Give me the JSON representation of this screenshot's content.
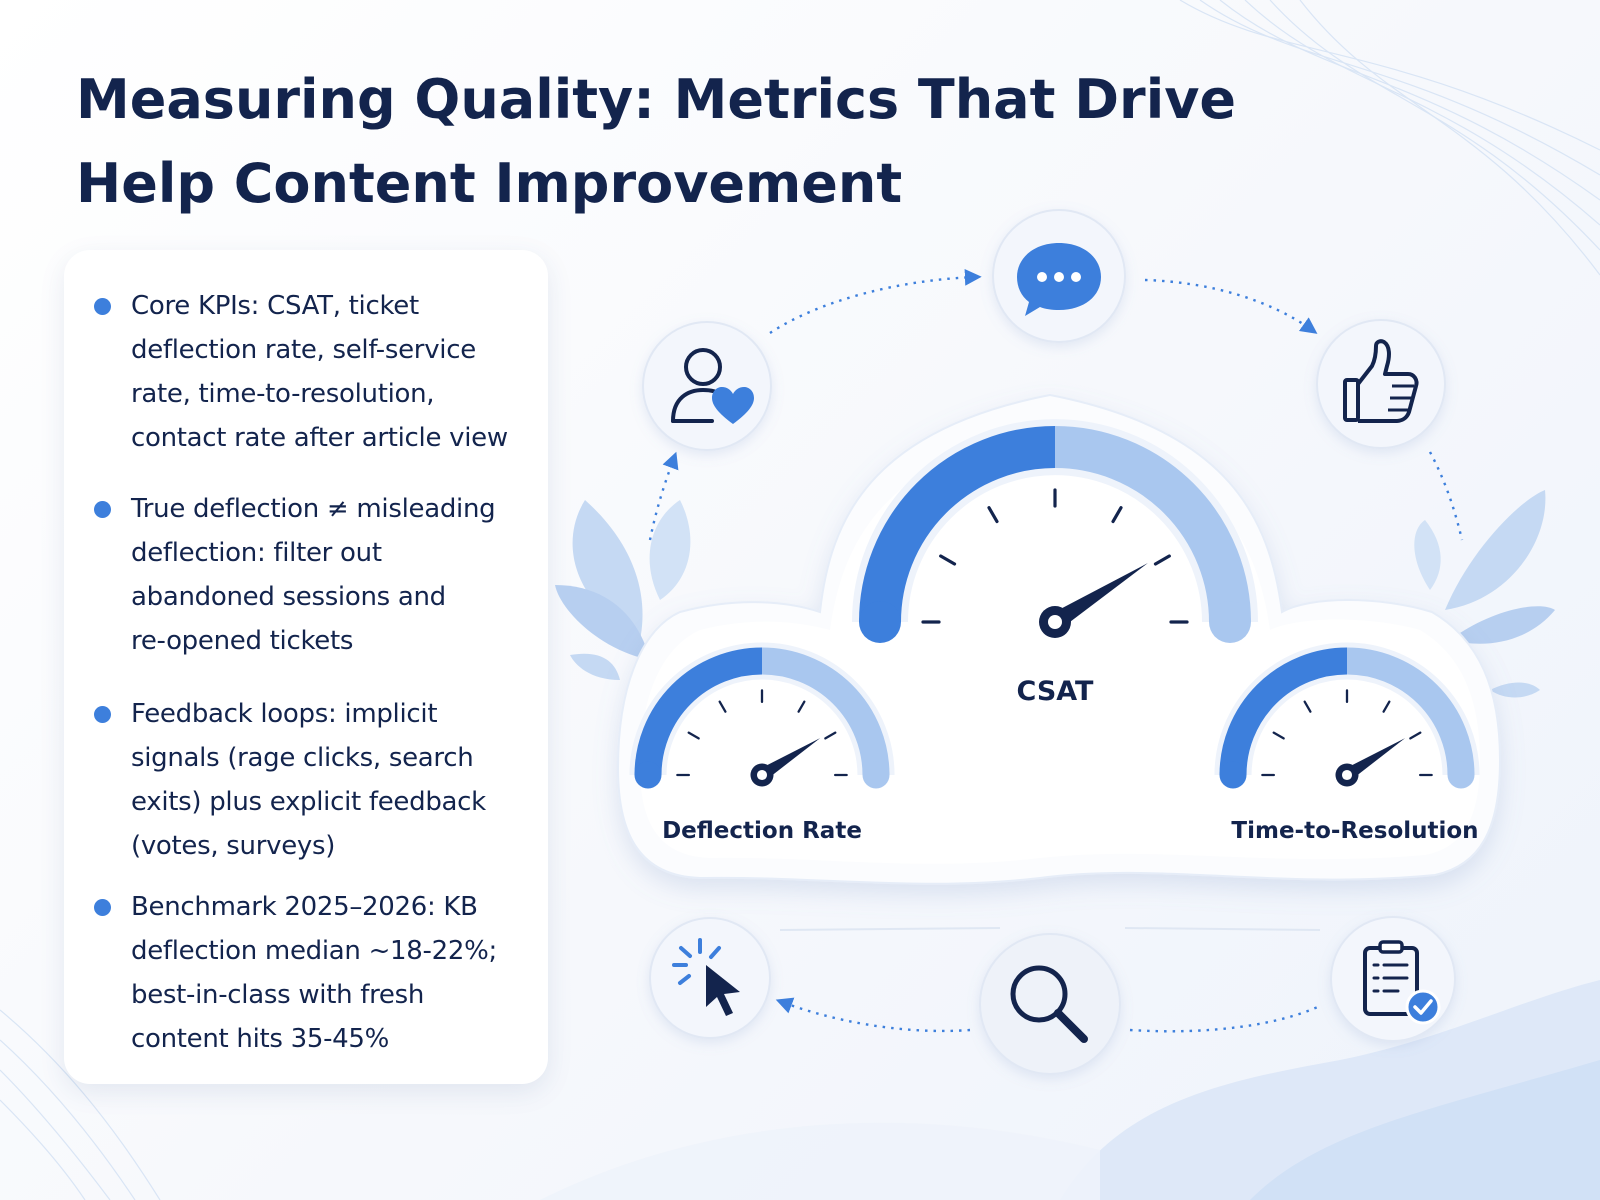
{
  "title": {
    "line1": "Measuring Quality: Metrics That Drive",
    "line2": "Help Content Improvement"
  },
  "bullets": [
    {
      "lines": [
        "Core KPIs: CSAT, ticket",
        "deflection rate, self-service",
        "rate, time-to-resolution,",
        "contact rate after article view"
      ]
    },
    {
      "lines": [
        "True deflection ≠ misleading",
        "deflection: filter out",
        "abandoned sessions and",
        "re-opened tickets"
      ]
    },
    {
      "lines": [
        "Feedback loops: implicit",
        "signals (rage clicks, search",
        "exits) plus explicit feedback",
        "(votes, surveys)"
      ]
    },
    {
      "lines": [
        "Benchmark 2025–2026: KB",
        "deflection median ~18-22%;",
        "best-in-class with fresh",
        "content hits 35-45%"
      ]
    }
  ],
  "gauges": {
    "csat": {
      "label": "CSAT",
      "needle_fraction": 0.82
    },
    "deflection": {
      "label": "Deflection Rate",
      "needle_fraction": 0.82
    },
    "ttr": {
      "label": "Time-to-Resolution",
      "needle_fraction": 0.82
    }
  },
  "cycle_icons": [
    "user-heart-icon",
    "chat-bubble-icon",
    "thumbs-up-icon",
    "checklist-icon",
    "search-icon",
    "click-cursor-icon"
  ],
  "colors": {
    "navy": "#13244d",
    "accent": "#3d7fdc",
    "accent_light": "#a9c7ef",
    "leaf": "#c5d9f3"
  }
}
